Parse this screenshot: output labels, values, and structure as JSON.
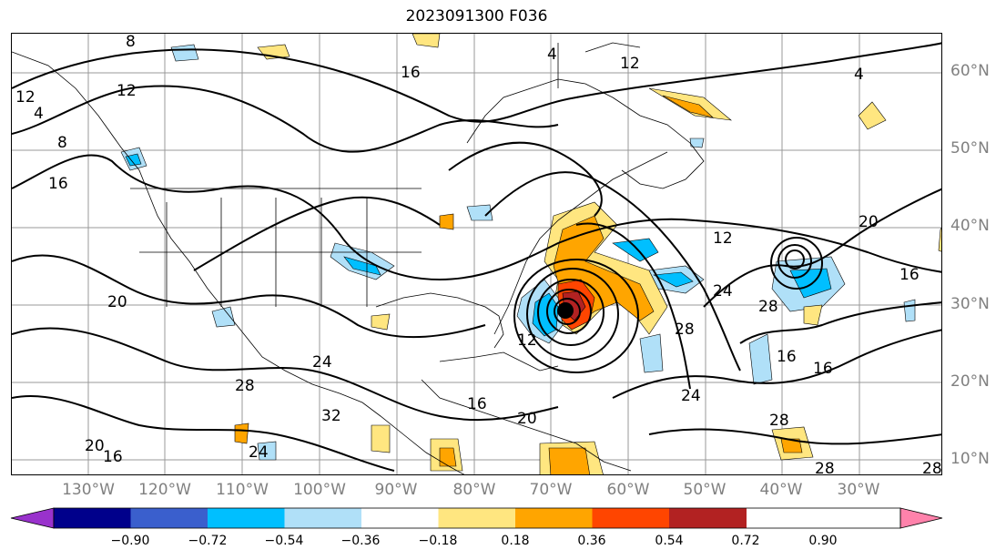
{
  "title": "2023091300 F036",
  "lat_labels": [
    "60°N",
    "50°N",
    "40°N",
    "30°N",
    "20°N",
    "10°N"
  ],
  "lon_labels": [
    "130°W",
    "120°W",
    "110°W",
    "100°W",
    "90°W",
    "80°W",
    "70°W",
    "60°W",
    "50°W",
    "40°W",
    "30°W"
  ],
  "colorbar": {
    "ticks": [
      "−0.90",
      "−0.72",
      "−0.54",
      "−0.36",
      "−0.18",
      "0.18",
      "0.36",
      "0.54",
      "0.72",
      "0.90"
    ],
    "colors": [
      "#9932cc",
      "#00008b",
      "#3a5fcd",
      "#00bfff",
      "#b0e0f8",
      "#ffffff",
      "#ffe680",
      "#ffa500",
      "#ff4500",
      "#b22222",
      "#ff82ab"
    ]
  },
  "contour_labels": [
    "8",
    "4",
    "12",
    "16",
    "12",
    "4",
    "8",
    "12",
    "16",
    "20",
    "24",
    "28",
    "32",
    "24",
    "20",
    "16",
    "12",
    "16",
    "20",
    "24",
    "28",
    "28",
    "24",
    "16",
    "16",
    "20",
    "12",
    "16",
    "28",
    "4",
    "28",
    "28"
  ],
  "storm_marker": "hurricane-center"
}
